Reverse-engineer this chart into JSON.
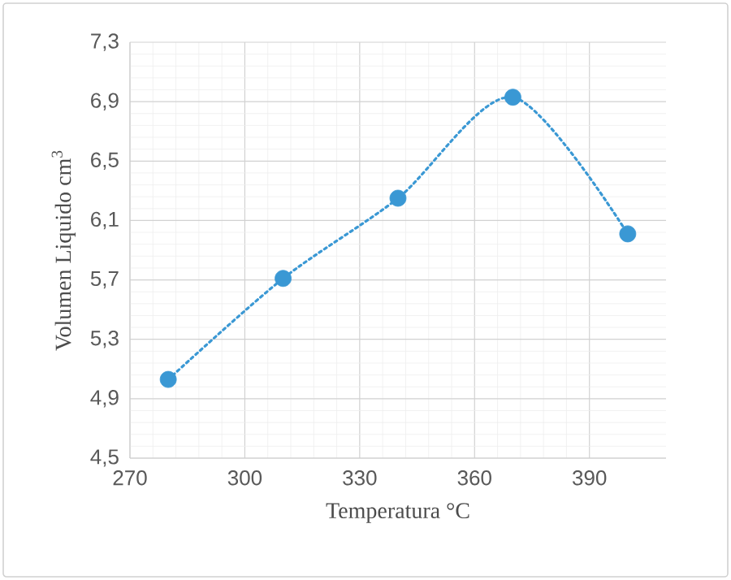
{
  "chart_data": {
    "type": "line",
    "xlabel": "Temperatura °C",
    "ylabel": "Volumen Liquido cm$^{3}$",
    "x": [
      280,
      310,
      340,
      370,
      400
    ],
    "series": [
      {
        "color": "#3a98d4",
        "values": [
          5.03,
          5.71,
          6.25,
          6.93,
          6.01
        ]
      }
    ],
    "xlim": [
      270,
      410
    ],
    "xticks": [
      270,
      300,
      330,
      360,
      390
    ],
    "ylim": [
      4.5,
      7.3
    ],
    "yticks": [
      {
        "value": 4.5,
        "label": "4,5"
      },
      {
        "value": 4.9,
        "label": "4,9"
      },
      {
        "value": 5.3,
        "label": "5,3"
      },
      {
        "value": 5.7,
        "label": "5,7"
      },
      {
        "value": 6.1,
        "label": "6,1"
      },
      {
        "value": 6.5,
        "label": "6,5"
      },
      {
        "value": 6.9,
        "label": "6,9"
      },
      {
        "value": 7.3,
        "label": "7,3"
      }
    ],
    "grid": true,
    "marker": "circle",
    "line_style": "dotted"
  }
}
